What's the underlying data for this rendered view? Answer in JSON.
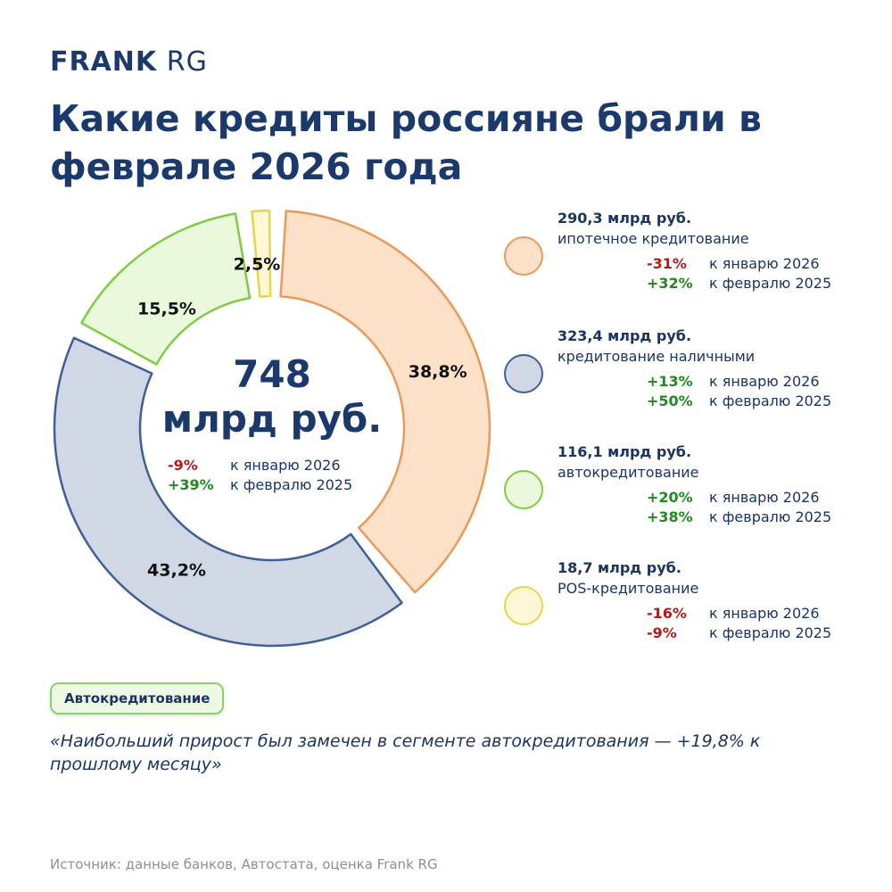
{
  "brand": {
    "bold": "FRANK",
    "light": "RG"
  },
  "title": "Какие кредиты россияне брали в феврале 2026 года",
  "center": {
    "total": "748",
    "unit": "млрд руб.",
    "changes": [
      {
        "value": "-9%",
        "label": "к январю 2026",
        "sign": "neg"
      },
      {
        "value": "+39%",
        "label": "к февралю 2025",
        "sign": "pos"
      }
    ]
  },
  "chart_data": {
    "type": "pie",
    "donut": true,
    "title": "",
    "categories": [
      "ипотечное кредитование",
      "кредитование наличными",
      "автокредитование",
      "POS-кредитование"
    ],
    "values": [
      38.8,
      43.2,
      15.5,
      2.5
    ],
    "value_labels": [
      "38,8%",
      "43,2%",
      "15,5%",
      "2,5%"
    ],
    "amounts": [
      290.3,
      323.4,
      116.1,
      18.7
    ],
    "fill_colors": [
      "#fde0c8",
      "#d0d8e6",
      "#eaf8dc",
      "#fdf7d6"
    ],
    "stroke_colors": [
      "#e89a5a",
      "#3f5f95",
      "#7fcb45",
      "#e8d64a"
    ],
    "total": 748
  },
  "legend": [
    {
      "amount": "290,3 млрд руб.",
      "name": "ипотечное кредитование",
      "changes": [
        {
          "value": "-31%",
          "label": "к январю 2026",
          "sign": "neg"
        },
        {
          "value": "+32%",
          "label": "к февралю 2025",
          "sign": "pos"
        }
      ]
    },
    {
      "amount": "323,4 млрд руб.",
      "name": "кредитование наличными",
      "changes": [
        {
          "value": "+13%",
          "label": "к январю 2026",
          "sign": "pos"
        },
        {
          "value": "+50%",
          "label": "к февралю 2025",
          "sign": "pos"
        }
      ]
    },
    {
      "amount": "116,1 млрд руб.",
      "name": "автокредитование",
      "changes": [
        {
          "value": "+20%",
          "label": "к январю 2026",
          "sign": "pos"
        },
        {
          "value": "+38%",
          "label": "к февралю 2025",
          "sign": "pos"
        }
      ]
    },
    {
      "amount": "18,7 млрд руб.",
      "name": "POS-кредитование",
      "changes": [
        {
          "value": "-16%",
          "label": "к январю 2026",
          "sign": "neg"
        },
        {
          "value": "-9%",
          "label": "к февралю 2025",
          "sign": "neg"
        }
      ]
    }
  ],
  "tag": "Автокредитование",
  "quote": "«Наибольший прирост был замечен в сегменте автокредитования — +19,8% к прошлому месяцу»",
  "source": "Источник: данные банков, Автостата, оценка Frank RG"
}
